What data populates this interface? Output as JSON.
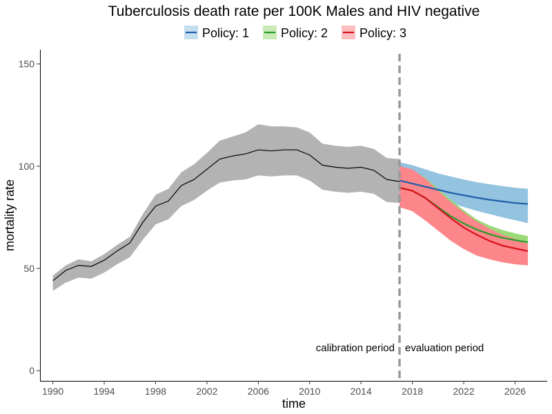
{
  "chart_data": {
    "type": "line",
    "title": "Tuberculosis death rate per 100K Males and HIV negative",
    "xlabel": "time",
    "ylabel": "mortality rate",
    "xlim": [
      1989,
      2028.5
    ],
    "ylim": [
      -5,
      157
    ],
    "x_ticks": [
      1990,
      1994,
      1998,
      2002,
      2006,
      2010,
      2014,
      2018,
      2022,
      2026
    ],
    "y_ticks": [
      0,
      50,
      100,
      150
    ],
    "grid": false,
    "legend_position": "top",
    "calibration": {
      "x": [
        1990,
        1991,
        1992,
        1993,
        1994,
        1995,
        1996,
        1997,
        1998,
        1999,
        2000,
        2001,
        2002,
        2003,
        2004,
        2005,
        2006,
        2007,
        2008,
        2009,
        2010,
        2011,
        2012,
        2013,
        2014,
        2015,
        2016,
        2017
      ],
      "y": [
        44,
        49,
        51.5,
        51,
        54,
        58.5,
        62.5,
        72.5,
        80.5,
        83,
        90.5,
        93.5,
        98.5,
        103.5,
        105,
        106,
        108,
        107.5,
        108,
        108,
        105.5,
        100.5,
        99.5,
        99,
        99.5,
        98,
        93.5,
        92.5
      ],
      "lower": [
        39,
        43,
        45.5,
        45,
        48,
        52,
        55.5,
        64,
        71.5,
        74,
        80.5,
        83.5,
        88,
        92,
        93,
        93.5,
        95.5,
        95,
        95.5,
        95.5,
        93,
        88.5,
        87.5,
        87,
        87.5,
        86.5,
        82.5,
        82
      ],
      "upper": [
        46.5,
        51.5,
        54.5,
        53.5,
        57,
        61.5,
        65.5,
        76.5,
        86,
        89,
        97,
        101,
        106.5,
        112.5,
        114.5,
        116.5,
        120.5,
        119.5,
        119.5,
        119,
        116.5,
        111,
        110,
        109.5,
        110,
        108.5,
        104,
        103.5
      ],
      "color": "#000000",
      "band_color": "#b3b3b3"
    },
    "series": [
      {
        "name": "Policy: 1",
        "color": "#1f5eab",
        "band_color": "#94c3e0",
        "x": [
          2017,
          2018,
          2019,
          2020,
          2021,
          2022,
          2023,
          2024,
          2025,
          2026,
          2027
        ],
        "y": [
          93,
          91.5,
          90,
          88.5,
          87,
          85.8,
          84.6,
          83.6,
          82.8,
          82,
          81.5
        ],
        "lower": [
          90,
          88,
          86,
          84,
          82,
          80,
          78.2,
          76.6,
          75,
          73.6,
          72.2
        ],
        "upper": [
          102,
          100.5,
          98.5,
          96.5,
          95,
          93.5,
          92.2,
          91.2,
          90.3,
          89.5,
          89
        ]
      },
      {
        "name": "Policy: 2",
        "color": "#269c2b",
        "band_color": "#9cd978",
        "x": [
          2017,
          2018,
          2019,
          2020,
          2021,
          2022,
          2023,
          2024,
          2025,
          2026,
          2027
        ],
        "y": [
          89.5,
          88,
          84.5,
          80,
          75.5,
          72,
          69,
          66.8,
          65,
          63.8,
          62.8
        ],
        "lower": [
          81,
          79,
          76,
          72,
          67.5,
          64,
          61.5,
          60,
          59,
          58.4,
          58
        ],
        "upper": [
          99.5,
          98,
          94.5,
          89,
          83.5,
          78.5,
          74,
          71,
          68.8,
          67.2,
          65.8
        ]
      },
      {
        "name": "Policy: 3",
        "color": "#d90f1c",
        "band_color": "#fc868a",
        "x": [
          2017,
          2018,
          2019,
          2020,
          2021,
          2022,
          2023,
          2024,
          2025,
          2026,
          2027
        ],
        "y": [
          89.5,
          88,
          84.5,
          79.5,
          74.5,
          70,
          66.5,
          63.5,
          61.2,
          59.8,
          58.5
        ],
        "lower": [
          80,
          78,
          73.5,
          68.5,
          63.5,
          59.5,
          56.3,
          54.5,
          53,
          52,
          51.5
        ],
        "upper": [
          100,
          98.5,
          94,
          88,
          82.5,
          77.5,
          73,
          69.5,
          66.5,
          64.5,
          62
        ]
      }
    ],
    "divider": {
      "x": 2017,
      "color": "#999999"
    },
    "annotations": {
      "left": "calibration period",
      "right": "evaluation period"
    }
  }
}
